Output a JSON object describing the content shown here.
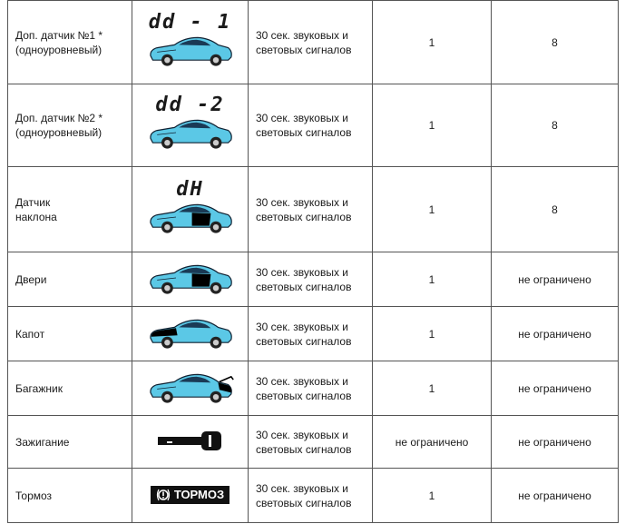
{
  "table": {
    "rows": [
      {
        "name": "Доп. датчик №1 *\n(одноуровневый)",
        "code": "dd - 1",
        "signal": "30 сек. звуковых и\nсветовых сигналов",
        "count": "1",
        "limit": "8"
      },
      {
        "name": "Доп. датчик №2 *\n(одноуровневый)",
        "code": "dd -2",
        "signal": "30 сек. звуковых и\nсветовых сигналов",
        "count": "1",
        "limit": "8"
      },
      {
        "name": "Датчик\nнаклона",
        "code": "dH",
        "signal": "30 сек. звуковых и\nсветовых сигналов",
        "count": "1",
        "limit": "8"
      },
      {
        "name": "Двери",
        "signal": "30 сек. звуковых и\nсветовых сигналов",
        "count": "1",
        "limit": "не ограничено"
      },
      {
        "name": "Капот",
        "signal": "30 сек. звуковых и\nсветовых сигналов",
        "count": "1",
        "limit": "не ограничено"
      },
      {
        "name": "Багажник",
        "signal": "30 сек. звуковых и\nсветовых сигналов",
        "count": "1",
        "limit": "не ограничено"
      },
      {
        "name": "Зажигание",
        "signal": "30 сек. звуковых и\nсветовых сигналов",
        "count": "не ограничено",
        "limit": "не ограничено"
      },
      {
        "name": "Тормоз",
        "badge": "ТОРМОЗ",
        "signal": "30 сек. звуковых и\nсветовых сигналов",
        "count": "1",
        "limit": "не ограничено"
      }
    ]
  }
}
